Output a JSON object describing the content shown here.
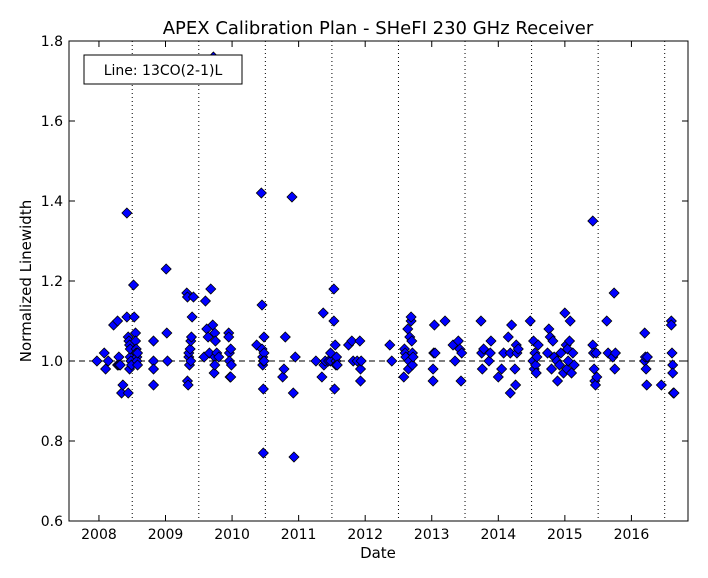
{
  "chart_data": {
    "type": "scatter",
    "title": "APEX Calibration Plan - SHeFI 230 GHz Receiver",
    "xlabel": "Date",
    "ylabel": "Normalized Linewidth",
    "xlim": [
      2007.55,
      2016.85
    ],
    "ylim": [
      0.6,
      1.8
    ],
    "xticks": [
      "2008",
      "2009",
      "2010",
      "2011",
      "2012",
      "2013",
      "2014",
      "2015",
      "2016"
    ],
    "yticks": [
      "0.6",
      "0.8",
      "1.0",
      "1.2",
      "1.4",
      "1.6",
      "1.8"
    ],
    "reference_line": 1.0,
    "vertical_dotted_lines": [
      2008.5,
      2009.5,
      2010.5,
      2011.5,
      2012.5,
      2013.5,
      2014.5,
      2015.5,
      2016.5
    ],
    "legend_box_text": "Line: 13CO(2-1)L",
    "legend_position": "top-left",
    "marker_color": "#0000ff",
    "series": [
      {
        "marker": "diamond",
        "x": [
          2007.97,
          2008.08,
          2008.1,
          2008.14,
          2008.22,
          2008.28,
          2008.28,
          2008.3,
          2008.3,
          2008.32,
          2008.34,
          2008.36,
          2008.42,
          2008.42,
          2008.44,
          2008.44,
          2008.45,
          2008.46,
          2008.46,
          2008.47,
          2008.47,
          2008.48,
          2008.49,
          2008.52,
          2008.53,
          2008.55,
          2008.55,
          2008.56,
          2008.56,
          2008.57,
          2008.57,
          2008.58,
          2008.58,
          2008.82,
          2008.82,
          2008.82,
          2008.82,
          2009.01,
          2009.02,
          2009.03,
          2009.32,
          2009.33,
          2009.33,
          2009.34,
          2009.35,
          2009.35,
          2009.36,
          2009.37,
          2009.38,
          2009.38,
          2009.39,
          2009.4,
          2009.42,
          2009.58,
          2009.6,
          2009.62,
          2009.64,
          2009.66,
          2009.68,
          2009.71,
          2009.72,
          2009.73,
          2009.74,
          2009.74,
          2009.74,
          2009.75,
          2009.77,
          2009.8,
          2009.95,
          2009.95,
          2009.96,
          2009.96,
          2009.97,
          2009.98,
          2009.98,
          2009.99,
          2010.37,
          2010.44,
          2010.45,
          2010.45,
          2010.46,
          2010.46,
          2010.47,
          2010.47,
          2010.47,
          2010.48,
          2010.48,
          2010.48,
          2010.76,
          2010.78,
          2010.8,
          2010.9,
          2010.92,
          2010.93,
          2010.95,
          2011.26,
          2011.35,
          2011.37,
          2011.38,
          2011.4,
          2011.45,
          2011.48,
          2011.48,
          2011.53,
          2011.53,
          2011.54,
          2011.55,
          2011.56,
          2011.56,
          2011.57,
          2011.58,
          2011.75,
          2011.8,
          2011.82,
          2011.88,
          2011.92,
          2011.93,
          2011.93,
          2011.94,
          2012.37,
          2012.4,
          2012.58,
          2012.59,
          2012.6,
          2012.61,
          2012.64,
          2012.65,
          2012.66,
          2012.67,
          2012.69,
          2012.69,
          2012.7,
          2012.71,
          2012.71,
          2012.72,
          2013.02,
          2013.02,
          2013.03,
          2013.04,
          2013.05,
          2013.2,
          2013.32,
          2013.35,
          2013.4,
          2013.42,
          2013.44,
          2013.45,
          2013.74,
          2013.75,
          2013.76,
          2013.78,
          2013.86,
          2013.88,
          2013.89,
          2014.0,
          2014.05,
          2014.08,
          2014.15,
          2014.18,
          2014.18,
          2014.2,
          2014.25,
          2014.26,
          2014.27,
          2014.28,
          2014.3,
          2014.48,
          2014.52,
          2014.53,
          2014.54,
          2014.55,
          2014.56,
          2014.57,
          2014.58,
          2014.6,
          2014.74,
          2014.76,
          2014.78,
          2014.8,
          2014.82,
          2014.84,
          2014.88,
          2014.89,
          2014.92,
          2014.94,
          2014.98,
          2015.0,
          2015.02,
          2015.03,
          2015.04,
          2015.05,
          2015.07,
          2015.08,
          2015.1,
          2015.12,
          2015.14,
          2015.42,
          2015.42,
          2015.43,
          2015.44,
          2015.45,
          2015.46,
          2015.47,
          2015.48,
          2015.63,
          2015.65,
          2015.72,
          2015.74,
          2015.75,
          2015.76,
          2016.2,
          2016.2,
          2016.21,
          2016.22,
          2016.23,
          2016.24,
          2016.45,
          2016.6,
          2016.6,
          2016.61,
          2016.62,
          2016.62,
          2016.63,
          2016.64
        ],
        "y": [
          1.0,
          1.02,
          0.98,
          1.0,
          1.09,
          1.1,
          0.99,
          1.01,
          0.99,
          0.99,
          0.92,
          0.94,
          1.37,
          1.11,
          1.06,
          0.92,
          1.05,
          0.98,
          1.04,
          1.01,
          1.03,
          1.0,
          0.99,
          1.19,
          1.11,
          1.07,
          1.05,
          1.03,
          1.02,
          1.01,
          1.0,
          0.99,
          1.02,
          1.05,
          1.0,
          0.98,
          0.94,
          1.23,
          1.07,
          1.0,
          1.17,
          1.16,
          0.95,
          0.94,
          1.01,
          1.02,
          0.99,
          1.03,
          1.05,
          1.0,
          1.06,
          1.11,
          1.16,
          1.01,
          1.15,
          1.08,
          1.06,
          1.02,
          1.18,
          1.09,
          1.76,
          0.97,
          1.07,
          1.01,
          0.99,
          1.05,
          1.02,
          1.01,
          1.07,
          1.06,
          1.02,
          1.0,
          0.96,
          1.03,
          0.96,
          0.99,
          1.04,
          1.42,
          1.14,
          1.03,
          1.01,
          0.99,
          0.93,
          1.0,
          0.77,
          1.06,
          1.02,
          1.0,
          0.96,
          0.98,
          1.06,
          1.41,
          0.92,
          0.76,
          1.01,
          1.0,
          0.96,
          1.12,
          0.99,
          1.0,
          1.0,
          1.0,
          1.02,
          1.18,
          1.1,
          0.93,
          1.04,
          1.0,
          0.99,
          1.01,
          0.99,
          1.04,
          1.05,
          1.0,
          1.0,
          1.05,
          0.98,
          0.95,
          1.0,
          1.04,
          1.0,
          0.96,
          1.03,
          1.02,
          1.01,
          1.08,
          0.98,
          1.0,
          1.06,
          1.1,
          1.11,
          1.05,
          1.02,
          0.99,
          1.01,
          0.98,
          0.95,
          1.02,
          1.09,
          1.02,
          1.1,
          1.04,
          1.0,
          1.05,
          1.03,
          0.95,
          1.02,
          1.1,
          1.02,
          0.98,
          1.03,
          1.0,
          1.02,
          1.05,
          0.96,
          0.98,
          1.02,
          1.06,
          1.02,
          0.92,
          1.09,
          0.98,
          0.94,
          1.04,
          1.02,
          1.03,
          1.1,
          1.0,
          1.05,
          0.98,
          1.02,
          0.99,
          0.97,
          1.01,
          1.04,
          1.02,
          1.08,
          1.06,
          0.98,
          1.05,
          1.01,
          1.0,
          0.95,
          0.99,
          1.02,
          0.97,
          1.12,
          1.04,
          0.98,
          1.03,
          1.0,
          1.05,
          1.1,
          0.97,
          1.02,
          0.99,
          1.35,
          1.04,
          1.02,
          0.98,
          0.95,
          0.94,
          1.02,
          0.96,
          1.1,
          1.02,
          1.01,
          1.17,
          0.98,
          1.02,
          1.07,
          1.0,
          1.01,
          0.98,
          0.94,
          1.01,
          0.94,
          1.1,
          1.09,
          1.02,
          0.99,
          0.97,
          0.92,
          0.92
        ]
      }
    ]
  }
}
